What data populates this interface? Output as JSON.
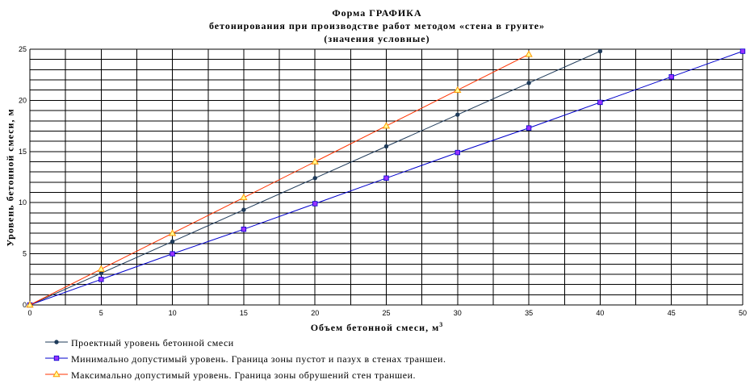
{
  "title_lines": [
    "Форма ГРАФИКА",
    "бетонирования при производстве работ методом «стена в  грунте»",
    "(значения условные)"
  ],
  "chart_data": {
    "type": "line",
    "xlabel": "Объем бетонной смеси, м",
    "xlabel_sup": "3",
    "ylabel": "Уровень бетонной смеси, м",
    "xlim": [
      0,
      50
    ],
    "ylim": [
      0,
      25
    ],
    "x_ticks": [
      "0",
      "5",
      "10",
      "15",
      "20",
      "25",
      "30",
      "35",
      "40",
      "45",
      "50"
    ],
    "y_ticks": [
      "0",
      "5",
      "10",
      "15",
      "20",
      "25"
    ],
    "grid": true,
    "legend_position": "bottom",
    "series": [
      {
        "name": "Проектный уровень бетонной смеси",
        "color": "#1f3b5a",
        "marker": "circle",
        "x": [
          0,
          5,
          10,
          15,
          20,
          25,
          30,
          35,
          40
        ],
        "y": [
          0,
          3.1,
          6.2,
          9.3,
          12.4,
          15.5,
          18.6,
          21.7,
          24.8
        ]
      },
      {
        "name": "Минимально допустимый уровень. Граница зоны пустот и пазух в стенах траншеи.",
        "color": "#0000cc",
        "marker": "square",
        "marker_color": "#9933ff",
        "x": [
          0,
          5,
          10,
          15,
          20,
          25,
          30,
          35,
          40,
          45,
          50
        ],
        "y": [
          0,
          2.5,
          5.0,
          7.4,
          9.9,
          12.4,
          14.9,
          17.3,
          19.8,
          22.3,
          24.8
        ]
      },
      {
        "name": "Максимально допустимый уровень. Граница зоны обрушений стен траншеи.",
        "color": "#ff3300",
        "marker": "triangle",
        "marker_color": "#ff9900",
        "x": [
          0,
          5,
          10,
          15,
          20,
          25,
          30,
          35
        ],
        "y": [
          0,
          3.5,
          7.0,
          10.5,
          14.0,
          17.5,
          21.0,
          24.5
        ]
      }
    ]
  }
}
